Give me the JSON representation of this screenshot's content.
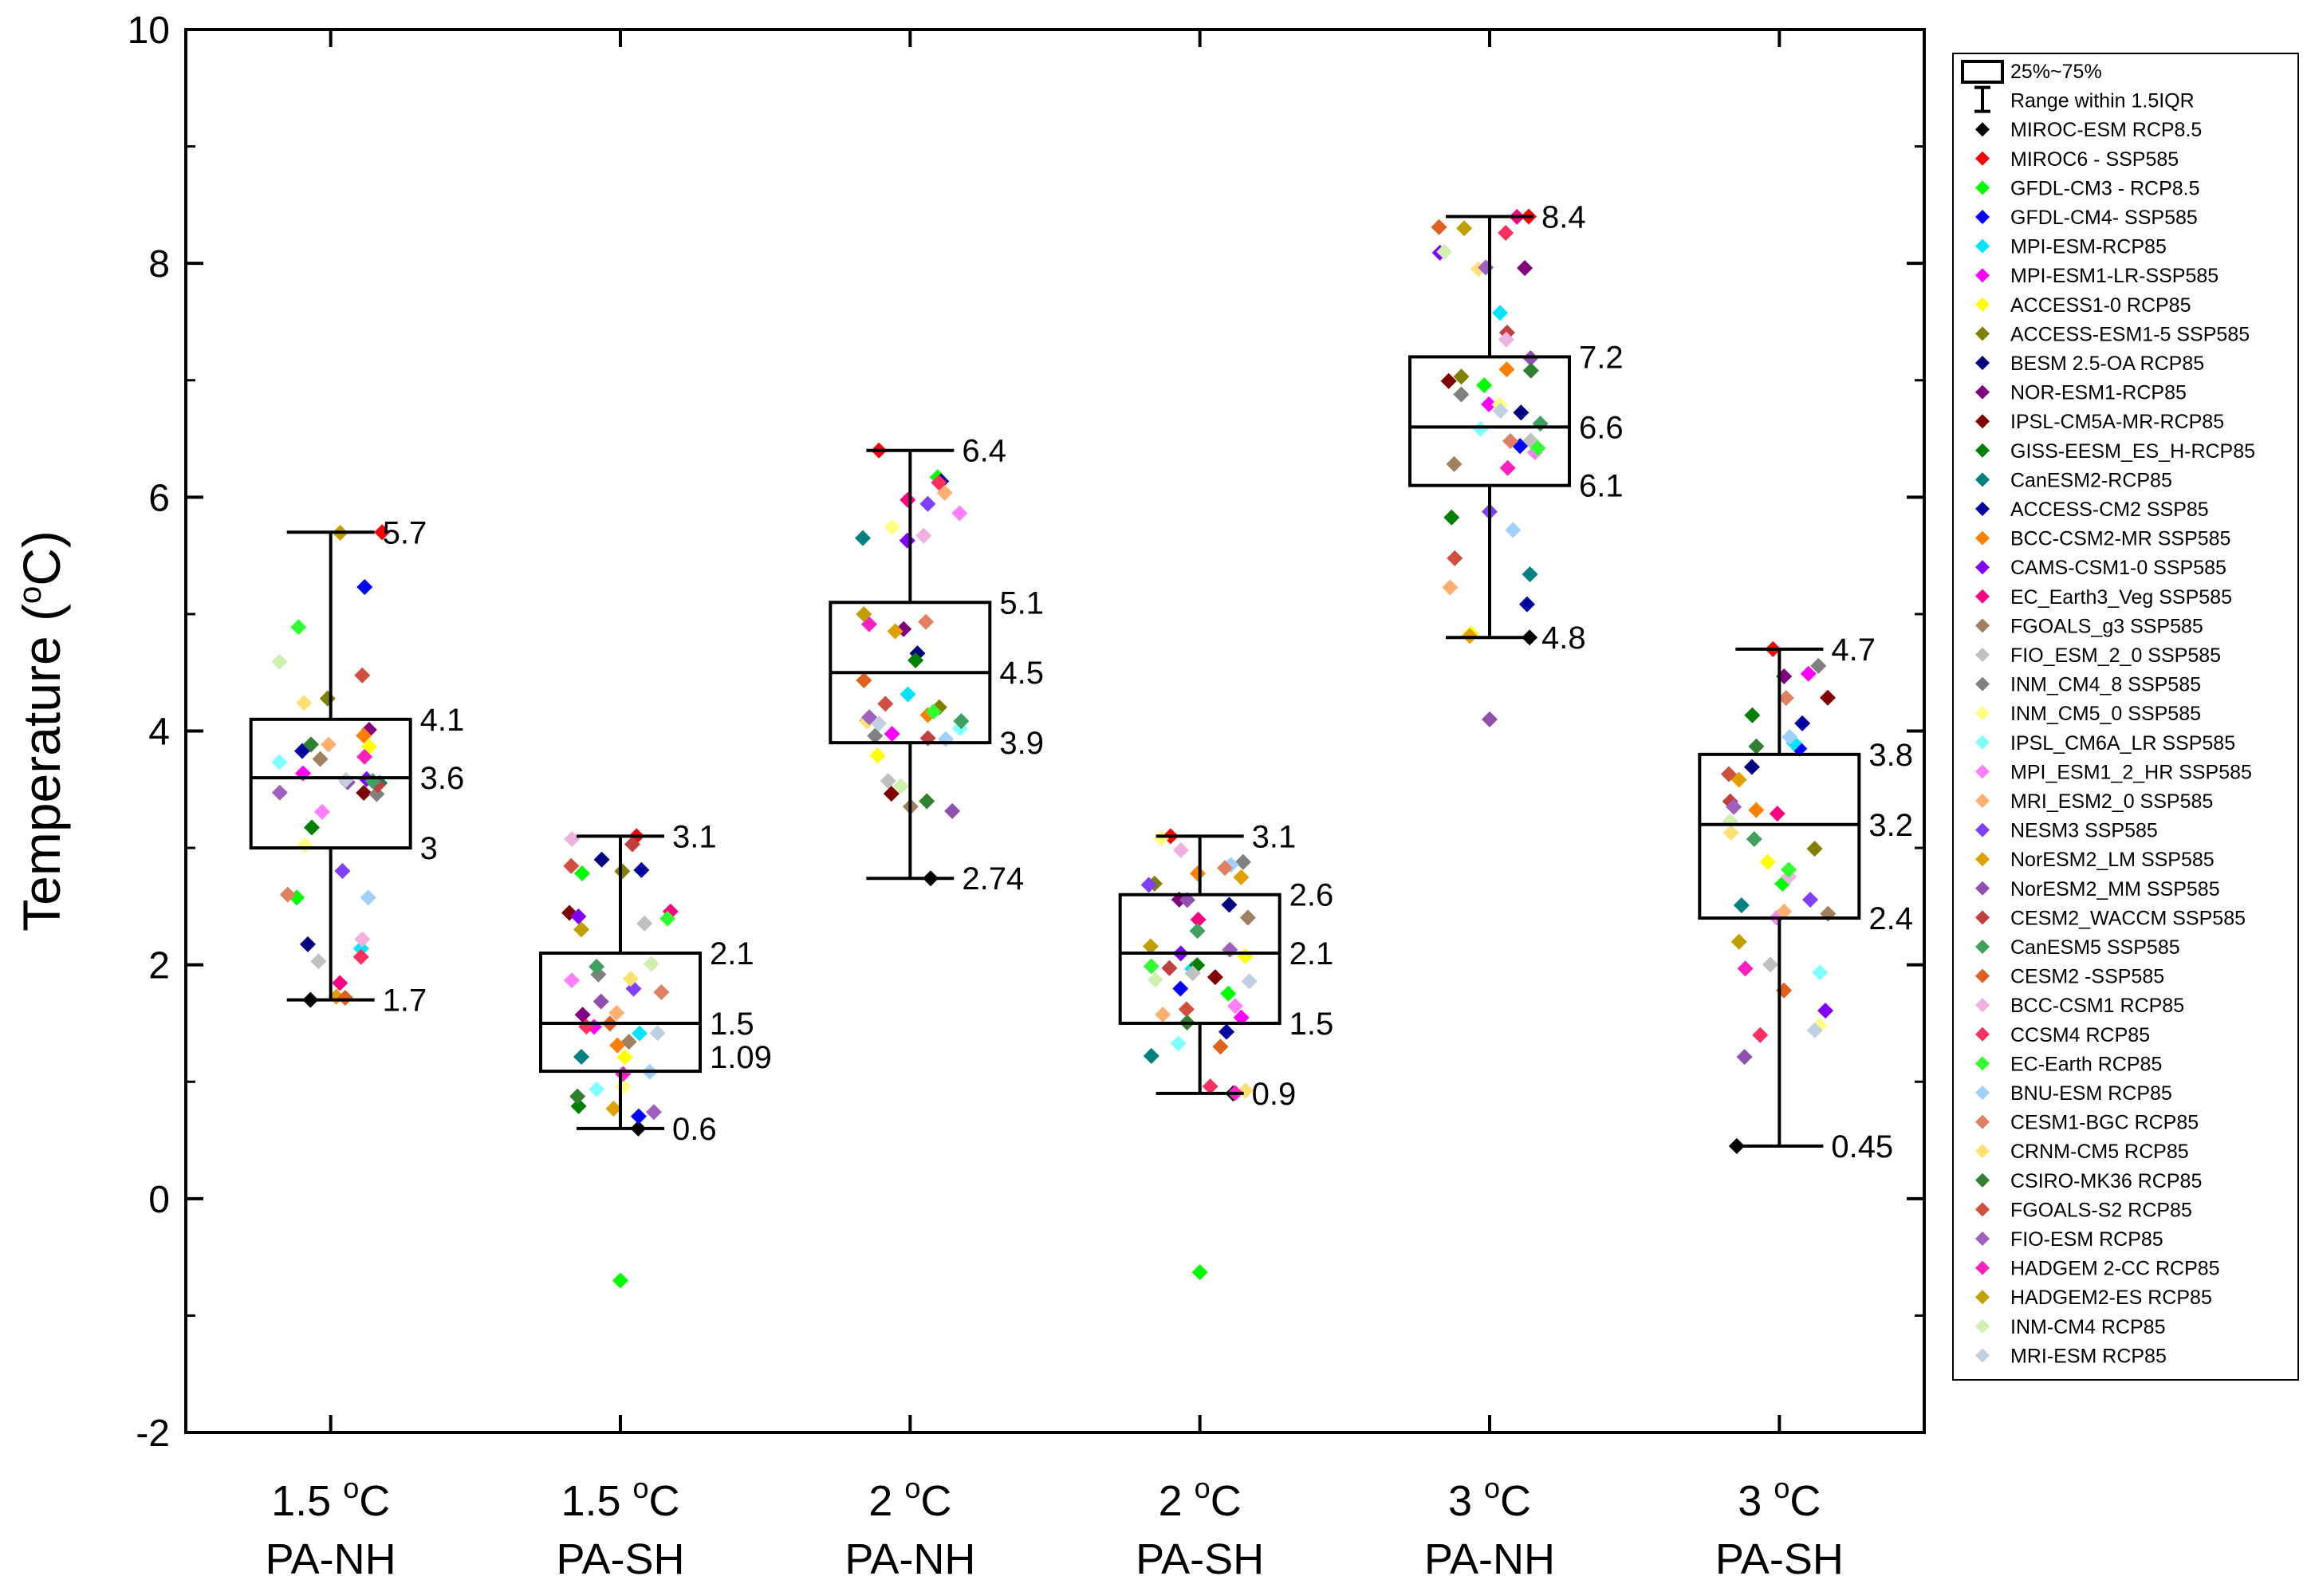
{
  "chart_data": {
    "type": "box",
    "title": "",
    "xlabel": "",
    "ylabel": {
      "main": "Temperature (",
      "sup": "o",
      "tail": "C)"
    },
    "ylim": [
      -2,
      10
    ],
    "yticks": [
      "-2",
      "0",
      "2",
      "4",
      "6",
      "8",
      "10"
    ],
    "categories": [
      {
        "line1": "1.5 ",
        "sup": "o",
        "line1_tail": "C",
        "line2": "PA-NH"
      },
      {
        "line1": "1.5 ",
        "sup": "o",
        "line1_tail": "C",
        "line2": "PA-SH"
      },
      {
        "line1": "2 ",
        "sup": "o",
        "line1_tail": "C",
        "line2": "PA-NH"
      },
      {
        "line1": "2 ",
        "sup": "o",
        "line1_tail": "C",
        "line2": "PA-SH"
      },
      {
        "line1": "3 ",
        "sup": "o",
        "line1_tail": "C",
        "line2": "PA-NH"
      },
      {
        "line1": "3 ",
        "sup": "o",
        "line1_tail": "C",
        "line2": "PA-SH"
      }
    ],
    "boxes": [
      {
        "min": 1.7,
        "q1": 3,
        "median": 3.6,
        "q3": 4.1,
        "max": 5.7,
        "labels": {
          "max": "5.7",
          "q3": "4.1",
          "median": "3.6",
          "q1": "3",
          "min": "1.7"
        }
      },
      {
        "min": 0.6,
        "q1": 1.09,
        "median": 1.5,
        "q3": 2.1,
        "max": 3.1,
        "labels": {
          "max": "3.1",
          "q3": "2.1",
          "median": "1.5",
          "q1": "1.09",
          "min": "0.6"
        }
      },
      {
        "min": 2.74,
        "q1": 3.9,
        "median": 4.5,
        "q3": 5.1,
        "max": 6.4,
        "labels": {
          "max": "6.4",
          "q3": "5.1",
          "median": "4.5",
          "q1": "3.9",
          "min": "2.74"
        }
      },
      {
        "min": 0.9,
        "q1": 1.5,
        "median": 2.1,
        "q3": 2.6,
        "max": 3.1,
        "labels": {
          "max": "3.1",
          "q3": "2.6",
          "median": "2.1",
          "q1": "1.5",
          "min": "0.9"
        }
      },
      {
        "min": 4.8,
        "q1": 6.1,
        "median": 6.6,
        "q3": 7.2,
        "max": 8.4,
        "labels": {
          "max": "8.4",
          "q3": "7.2",
          "median": "6.6",
          "q1": "6.1",
          "min": "4.8"
        }
      },
      {
        "min": 0.45,
        "q1": 2.4,
        "median": 3.2,
        "q3": 3.8,
        "max": 4.7,
        "labels": {
          "max": "4.7",
          "q3": "3.8",
          "median": "3.2",
          "q1": "2.4",
          "min": "0.45"
        }
      }
    ],
    "legend": {
      "position": "right",
      "box_label": "25%~75%",
      "whisker_label": "Range within 1.5IQR",
      "models": [
        {
          "name": "MIROC-ESM RCP8.5",
          "color": "#000000"
        },
        {
          "name": "MIROC6 - SSP585",
          "color": "#ff0000"
        },
        {
          "name": "GFDL-CM3 - RCP8.5",
          "color": "#00ff00"
        },
        {
          "name": "GFDL-CM4- SSP585",
          "color": "#0000ff"
        },
        {
          "name": "MPI-ESM-RCP85",
          "color": "#00e5ff"
        },
        {
          "name": "MPI-ESM1-LR-SSP585",
          "color": "#ff00ff"
        },
        {
          "name": "ACCESS1-0 RCP85",
          "color": "#ffff00"
        },
        {
          "name": "ACCESS-ESM1-5 SSP585",
          "color": "#808000"
        },
        {
          "name": "BESM 2.5-OA RCP85",
          "color": "#000080"
        },
        {
          "name": "NOR-ESM1-RCP85",
          "color": "#800080"
        },
        {
          "name": "IPSL-CM5A-MR-RCP85",
          "color": "#800000"
        },
        {
          "name": "GISS-EESM_ES_H-RCP85",
          "color": "#008000"
        },
        {
          "name": "CanESM2-RCP85",
          "color": "#008080"
        },
        {
          "name": "ACCESS-CM2 SSP85",
          "color": "#0000a0"
        },
        {
          "name": "BCC-CSM2-MR SSP585",
          "color": "#ff8000"
        },
        {
          "name": "CAMS-CSM1-0 SSP585",
          "color": "#8000ff"
        },
        {
          "name": "EC_Earth3_Veg SSP585",
          "color": "#ff0080"
        },
        {
          "name": "FGOALS_g3 SSP585",
          "color": "#a08060"
        },
        {
          "name": "FIO_ESM_2_0 SSP585",
          "color": "#c0c0c0"
        },
        {
          "name": "INM_CM4_8 SSP585",
          "color": "#808080"
        },
        {
          "name": "INM_CM5_0 SSP585",
          "color": "#ffff80"
        },
        {
          "name": "IPSL_CM6A_LR SSP585",
          "color": "#80ffff"
        },
        {
          "name": "MPI_ESM1_2_HR SSP585",
          "color": "#ff80ff"
        },
        {
          "name": "MRI_ESM2_0 SSP585",
          "color": "#ffb070"
        },
        {
          "name": "NESM3 SSP585",
          "color": "#8040ff"
        },
        {
          "name": "NorESM2_LM SSP585",
          "color": "#e0a000"
        },
        {
          "name": "NorESM2_MM SSP585",
          "color": "#9050b0"
        },
        {
          "name": "CESM2_WACCM SSP585",
          "color": "#c04040"
        },
        {
          "name": "CanESM5 SSP585",
          "color": "#40a060"
        },
        {
          "name": "CESM2 -SSP585",
          "color": "#e06020"
        },
        {
          "name": "BCC-CSM1 RCP85",
          "color": "#f0b0e0"
        },
        {
          "name": "CCSM4 RCP85",
          "color": "#ff3060"
        },
        {
          "name": "EC-Earth RCP85",
          "color": "#30ff30"
        },
        {
          "name": "BNU-ESM RCP85",
          "color": "#a0d0ff"
        },
        {
          "name": "CESM1-BGC RCP85",
          "color": "#e08060"
        },
        {
          "name": "CRNM-CM5 RCP85",
          "color": "#ffe070"
        },
        {
          "name": "CSIRO-MK36 RCP85",
          "color": "#308030"
        },
        {
          "name": "FGOALS-S2 RCP85",
          "color": "#d05040"
        },
        {
          "name": "FIO-ESM RCP85",
          "color": "#a060c0"
        },
        {
          "name": "HADGEM 2-CC RCP85",
          "color": "#ff20c0"
        },
        {
          "name": "HADGEM2-ES RCP85",
          "color": "#c0a000"
        },
        {
          "name": "INM-CM4 RCP85",
          "color": "#d0f0b0"
        },
        {
          "name": "MRI-ESM RCP85",
          "color": "#c0d0e0"
        }
      ]
    },
    "outliers": [
      {
        "category": 1,
        "value": -0.7,
        "color": "#00ff00"
      },
      {
        "category": 3,
        "value": -0.63,
        "color": "#00ff00"
      },
      {
        "category": 4,
        "value": 4.1,
        "color": "#9050b0"
      }
    ]
  }
}
